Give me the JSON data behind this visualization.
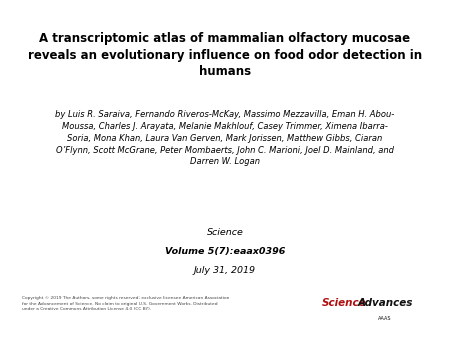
{
  "title": "A transcriptomic atlas of mammalian olfactory mucosae\nreveals an evolutionary influence on food odor detection in\nhumans",
  "authors": "by Luis R. Saraiva, Fernando Riveros-McKay, Massimo Mezzavilla, Eman H. Abou-\nMoussa, Charles J. Arayata, Melanie Makhlouf, Casey Trimmer, Ximena Ibarra-\nSoria, Mona Khan, Laura Van Gerven, Mark Jorissen, Matthew Gibbs, Ciaran\nO’Flynn, Scott McGrane, Peter Mombaerts, John C. Marioni, Joel D. Mainland, and\nDarren W. Logan",
  "journal_line1": "Science",
  "journal_line2": "Volume 5(7):eaax0396",
  "journal_line3": "July 31, 2019",
  "copyright_text": "Copyright © 2019 The Authors, some rights reserved; exclusive licensee American Association\nfor the Advancement of Science. No claim to original U.S. Government Works. Distributed\nunder a Creative Commons Attribution License 4.0 (CC BY).",
  "science_text": "Science",
  "advances_text": "Advances",
  "aaas_text": "AAAS",
  "background_color": "#ffffff",
  "title_color": "#000000",
  "authors_color": "#000000",
  "journal_color": "#000000",
  "copyright_color": "#444444",
  "science_red": "#b01010",
  "advances_black": "#111111",
  "title_fontsize": 8.5,
  "authors_fontsize": 6.0,
  "journal_fontsize": 6.8,
  "copyright_fontsize": 3.2,
  "logo_fontsize": 7.5,
  "aaas_fontsize": 3.5
}
